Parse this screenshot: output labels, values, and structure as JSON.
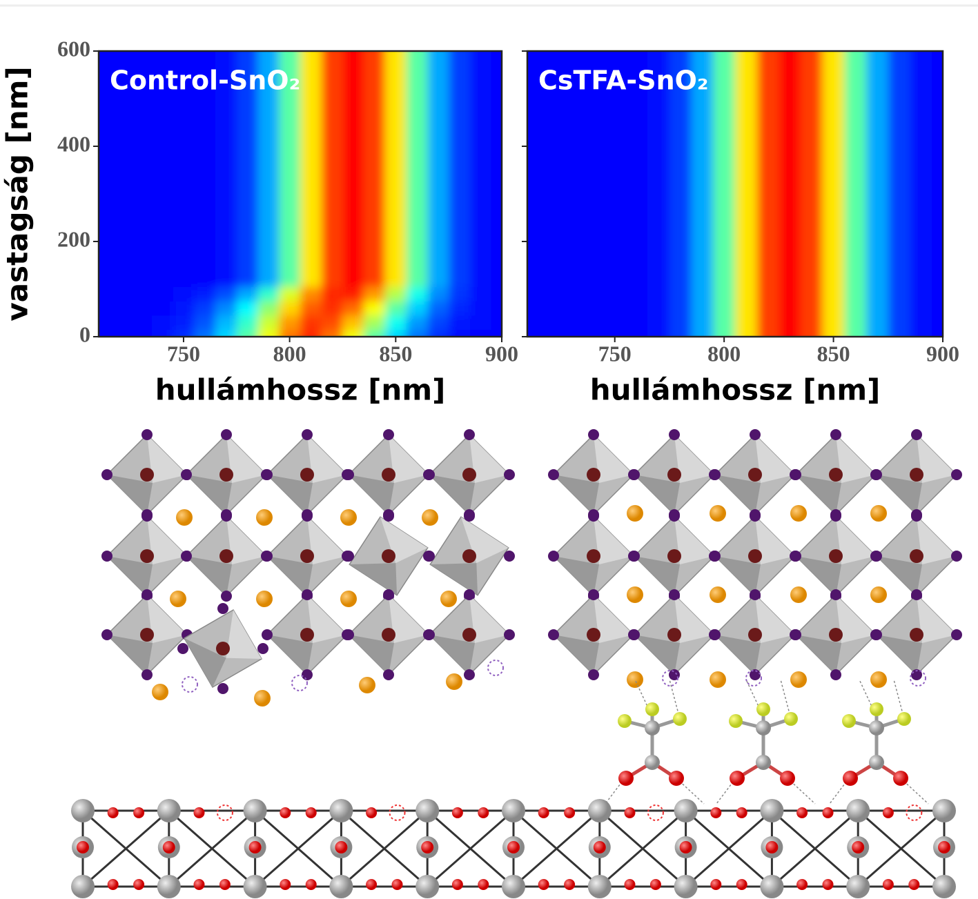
{
  "chart_data": [
    {
      "type": "heatmap",
      "title": "Control-SnO₂",
      "xlabel": "hullámhossz [nm]",
      "ylabel": "vastagság [nm]",
      "x": [
        710,
        720,
        730,
        740,
        750,
        760,
        770,
        780,
        790,
        800,
        810,
        820,
        830,
        840,
        850,
        860,
        870,
        880,
        890,
        900
      ],
      "y": [
        0,
        30,
        60,
        90,
        120,
        200,
        300,
        400,
        500,
        600
      ],
      "values": [
        [
          0,
          0,
          0,
          2,
          6,
          15,
          28,
          45,
          65,
          85,
          95,
          85,
          65,
          45,
          28,
          15,
          6,
          2,
          0,
          0
        ],
        [
          0,
          0,
          0,
          1,
          4,
          11,
          24,
          40,
          60,
          80,
          93,
          90,
          75,
          55,
          35,
          20,
          9,
          3,
          1,
          0
        ],
        [
          0,
          0,
          0,
          0,
          3,
          8,
          18,
          33,
          52,
          72,
          88,
          94,
          86,
          66,
          45,
          27,
          13,
          5,
          1,
          0
        ],
        [
          0,
          0,
          0,
          0,
          1,
          4,
          10,
          22,
          40,
          62,
          82,
          95,
          96,
          80,
          57,
          36,
          18,
          7,
          2,
          0
        ],
        [
          0,
          0,
          0,
          0,
          0,
          0,
          2,
          8,
          22,
          45,
          70,
          92,
          100,
          92,
          70,
          45,
          22,
          8,
          2,
          0
        ],
        [
          0,
          0,
          0,
          0,
          0,
          0,
          2,
          8,
          22,
          45,
          70,
          92,
          100,
          92,
          70,
          45,
          22,
          8,
          2,
          0
        ],
        [
          0,
          0,
          0,
          0,
          0,
          0,
          2,
          8,
          22,
          45,
          70,
          92,
          100,
          92,
          70,
          45,
          22,
          8,
          2,
          0
        ],
        [
          0,
          0,
          0,
          0,
          0,
          0,
          2,
          8,
          22,
          45,
          70,
          92,
          100,
          92,
          70,
          45,
          22,
          8,
          2,
          0
        ],
        [
          0,
          0,
          0,
          0,
          0,
          0,
          2,
          8,
          22,
          45,
          70,
          92,
          100,
          92,
          70,
          45,
          22,
          8,
          2,
          0
        ],
        [
          0,
          0,
          0,
          0,
          0,
          0,
          2,
          8,
          22,
          45,
          70,
          92,
          100,
          92,
          70,
          45,
          22,
          8,
          2,
          0
        ]
      ],
      "xlim": [
        710,
        900
      ],
      "ylim": [
        0,
        600
      ],
      "xticks": [
        750,
        800,
        850,
        900
      ],
      "yticks": [
        0,
        200,
        400,
        600
      ],
      "colormap": "jet"
    },
    {
      "type": "heatmap",
      "title": "CsTFA-SnO₂",
      "xlabel": "hullámhossz [nm]",
      "x": [
        710,
        720,
        730,
        740,
        750,
        760,
        770,
        780,
        790,
        800,
        810,
        820,
        830,
        840,
        850,
        860,
        870,
        880,
        890,
        900
      ],
      "y": [
        0,
        30,
        60,
        90,
        120,
        200,
        300,
        400,
        500,
        600
      ],
      "values": [
        [
          0,
          0,
          0,
          0,
          0,
          0,
          2,
          8,
          22,
          45,
          70,
          92,
          100,
          92,
          70,
          45,
          22,
          8,
          2,
          0
        ],
        [
          0,
          0,
          0,
          0,
          0,
          0,
          2,
          8,
          22,
          45,
          70,
          92,
          100,
          92,
          70,
          45,
          22,
          8,
          2,
          0
        ],
        [
          0,
          0,
          0,
          0,
          0,
          0,
          2,
          8,
          22,
          45,
          70,
          92,
          100,
          92,
          70,
          45,
          22,
          8,
          2,
          0
        ],
        [
          0,
          0,
          0,
          0,
          0,
          0,
          2,
          8,
          22,
          45,
          70,
          92,
          100,
          92,
          70,
          45,
          22,
          8,
          2,
          0
        ],
        [
          0,
          0,
          0,
          0,
          0,
          0,
          2,
          8,
          22,
          45,
          70,
          92,
          100,
          92,
          70,
          45,
          22,
          8,
          2,
          0
        ],
        [
          0,
          0,
          0,
          0,
          0,
          0,
          2,
          8,
          22,
          45,
          70,
          92,
          100,
          92,
          70,
          45,
          22,
          8,
          2,
          0
        ],
        [
          0,
          0,
          0,
          0,
          0,
          0,
          2,
          8,
          22,
          45,
          70,
          92,
          100,
          92,
          70,
          45,
          22,
          8,
          2,
          0
        ],
        [
          0,
          0,
          0,
          0,
          0,
          0,
          2,
          8,
          22,
          45,
          70,
          92,
          100,
          92,
          70,
          45,
          22,
          8,
          2,
          0
        ],
        [
          0,
          0,
          0,
          0,
          0,
          0,
          2,
          8,
          22,
          45,
          70,
          92,
          100,
          92,
          70,
          45,
          22,
          8,
          2,
          0
        ],
        [
          0,
          0,
          0,
          0,
          0,
          0,
          2,
          8,
          22,
          45,
          70,
          92,
          100,
          92,
          70,
          45,
          22,
          8,
          2,
          0
        ]
      ],
      "xlim": [
        710,
        900
      ],
      "ylim": [
        0,
        600
      ],
      "xticks": [
        750,
        800,
        850,
        900
      ],
      "yticks": [
        0,
        200,
        400,
        600
      ],
      "colormap": "jet"
    }
  ]
}
